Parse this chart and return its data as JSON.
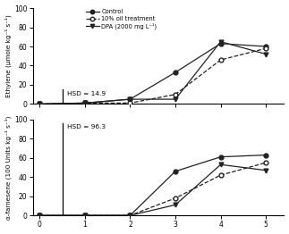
{
  "x": [
    0,
    1,
    2,
    3,
    4,
    5
  ],
  "ethylene": {
    "control": [
      0,
      1,
      5,
      33,
      63,
      60
    ],
    "oil": [
      0,
      1,
      1,
      10,
      46,
      58
    ],
    "dpa": [
      0,
      1,
      5,
      5,
      65,
      52
    ]
  },
  "farnesene": {
    "control": [
      0,
      0,
      0,
      46,
      61,
      63
    ],
    "oil": [
      0,
      0,
      0,
      18,
      42,
      55
    ],
    "dpa": [
      0,
      0,
      0,
      11,
      53,
      47
    ]
  },
  "hsd_ethylene": "HSD = 14.9",
  "hsd_farnesene": "HSD = 96.3",
  "hsd_ethylene_val": 14.9,
  "hsd_farnesene_val": 96.3,
  "ylabel_top": "Ethylene (μmole kg⁻¹ s⁻¹)",
  "ylabel_bottom": "α-farnesene (100 Units kg⁻¹ s⁻¹)",
  "ylim": [
    0,
    100
  ],
  "yticks": [
    0,
    20,
    40,
    60,
    80,
    100
  ],
  "xlim": [
    -0.15,
    5.4
  ],
  "xticks": [
    0,
    1,
    2,
    3,
    4,
    5
  ],
  "legend_labels": [
    "Control",
    "10% oil treatment",
    "DPA (2000 mg L⁻¹)"
  ],
  "line_color": "#222222",
  "background_color": "#ffffff"
}
